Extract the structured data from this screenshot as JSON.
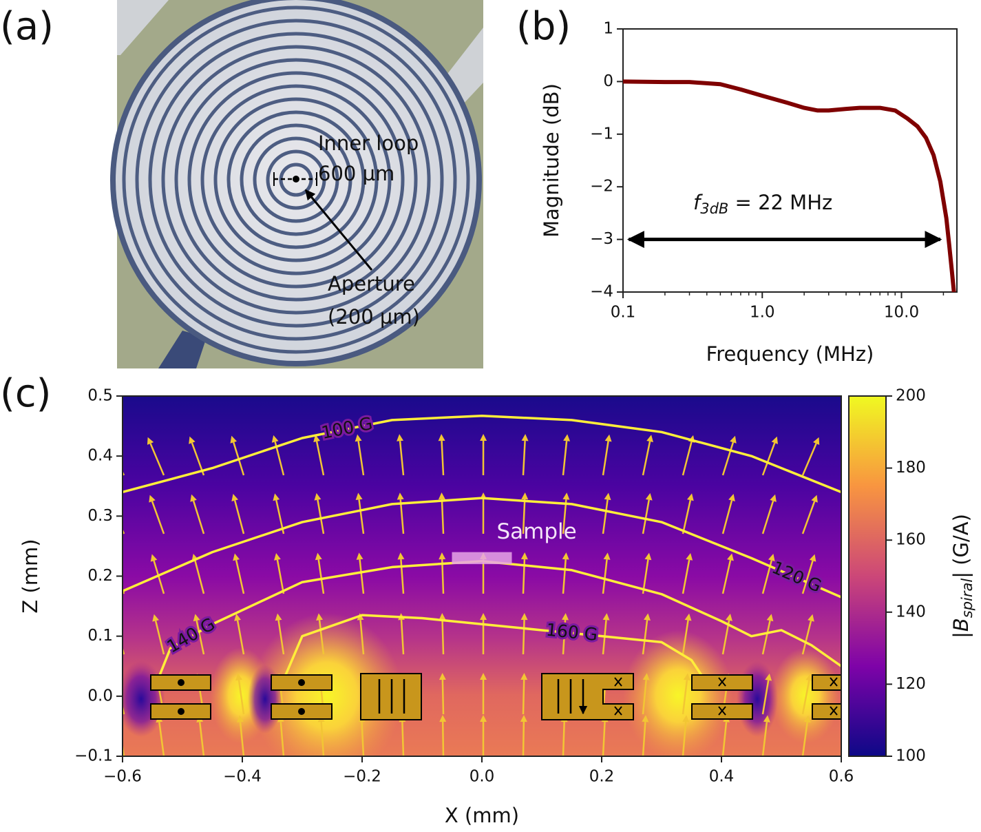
{
  "panel_labels": [
    "(a)",
    "(b)",
    "(c)"
  ],
  "photo": {
    "annotations": [
      "Inner loop",
      "600 µm",
      "Aperture",
      "(200 µm)"
    ]
  },
  "chart_data": [
    {
      "type": "line",
      "x_label": "Frequency (MHz)",
      "y_label": "Magnitude (dB)",
      "xscale": "log",
      "xlim": [
        0.1,
        25
      ],
      "ylim": [
        -4,
        1
      ],
      "xticks": [
        0.1,
        {
          "value": 1,
          "label": "1.0"
        },
        {
          "value": 10,
          "label": "10.0"
        }
      ],
      "xminorticks": [
        0.2,
        0.3,
        0.4,
        0.5,
        0.6,
        0.7,
        0.8,
        0.9,
        2,
        3,
        4,
        5,
        6,
        7,
        8,
        9,
        20
      ],
      "yticks": [
        {
          "value": -4,
          "label": "−4"
        },
        {
          "value": -3,
          "label": "−3"
        },
        {
          "value": -2,
          "label": "−2"
        },
        {
          "value": -1,
          "label": "−1"
        },
        0,
        1
      ],
      "x": [
        0.1,
        0.2,
        0.3,
        0.5,
        0.7,
        1.0,
        1.5,
        2.0,
        2.5,
        3.0,
        4.0,
        5.0,
        7.0,
        9.0,
        11,
        13,
        15,
        17,
        19,
        21,
        22,
        23,
        23.8
      ],
      "series": [
        {
          "color": "#7f0000",
          "values": [
            0,
            -0.01,
            -0.01,
            -0.05,
            -0.15,
            -0.27,
            -0.4,
            -0.5,
            -0.55,
            -0.55,
            -0.52,
            -0.5,
            -0.5,
            -0.55,
            -0.7,
            -0.85,
            -1.07,
            -1.4,
            -1.9,
            -2.6,
            -3.1,
            -3.6,
            -4
          ]
        }
      ],
      "annotation": {
        "symbol": "f",
        "subscript": "3dB",
        "text": " = 22 MHz",
        "arrow_x": [
          0.11,
          19
        ],
        "arrow_y": -3
      }
    },
    {
      "type": "heatmap",
      "x_label": "X (mm)",
      "y_label": "Z (mm)",
      "xlim": [
        -0.6,
        0.6
      ],
      "ylim": [
        -0.1,
        0.5
      ],
      "xticks": [
        {
          "value": -0.6,
          "label": "−0.6"
        },
        {
          "value": -0.4,
          "label": "−0.4"
        },
        {
          "value": -0.2,
          "label": "−0.2"
        },
        {
          "value": 0,
          "label": "0.0"
        },
        0.2,
        0.4,
        0.6
      ],
      "yticks": [
        {
          "value": -0.1,
          "label": "−0.1"
        },
        {
          "value": 0,
          "label": "0.0"
        },
        0.1,
        0.2,
        0.3,
        0.4,
        0.5
      ],
      "colorbar": {
        "label": {
          "prefix": "|",
          "symbol": "B",
          "subscript": "spiral",
          "suffix": "| (G/A)"
        },
        "lim": [
          100,
          200
        ],
        "ticks": [
          100,
          120,
          140,
          160,
          180,
          200
        ],
        "colormap": [
          "#0d0887",
          "#7e03a8",
          "#cc4778",
          "#f89540",
          "#f0f921"
        ]
      },
      "contours": [
        {
          "name": "100 G",
          "color": "#ffee3a",
          "x": [
            -0.6,
            -0.45,
            -0.3,
            -0.15,
            0,
            0.15,
            0.3,
            0.45,
            0.6
          ],
          "y": [
            0.34,
            0.38,
            0.43,
            0.46,
            0.467,
            0.46,
            0.44,
            0.4,
            0.34
          ]
        },
        {
          "name": "120 G",
          "color": "#ffee3a",
          "x": [
            -0.6,
            -0.45,
            -0.3,
            -0.15,
            0,
            0.15,
            0.3,
            0.45,
            0.6
          ],
          "y": [
            0.175,
            0.24,
            0.29,
            0.32,
            0.33,
            0.32,
            0.29,
            0.23,
            0.165
          ]
        },
        {
          "name": "140 G",
          "color": "#ffee3a",
          "x": [
            -0.54,
            -0.52,
            -0.45,
            -0.3,
            -0.15,
            0,
            0.15,
            0.3,
            0.4,
            0.45,
            0.5,
            0.55,
            0.6
          ],
          "y": [
            0.03,
            0.08,
            0.12,
            0.19,
            0.215,
            0.225,
            0.21,
            0.17,
            0.125,
            0.1,
            0.11,
            0.085,
            0.05
          ]
        },
        {
          "name": "160 G",
          "color": "#ffee3a",
          "x": [
            -0.33,
            -0.3,
            -0.2,
            -0.1,
            0,
            0.1,
            0.2,
            0.3,
            0.35,
            0.37
          ],
          "y": [
            0.03,
            0.1,
            0.135,
            0.13,
            0.12,
            0.11,
            0.1,
            0.09,
            0.06,
            0.03
          ]
        }
      ],
      "sample": {
        "label": "Sample",
        "x": [
          -0.05,
          0.05
        ],
        "y": [
          0.22,
          0.24
        ]
      }
    }
  ]
}
